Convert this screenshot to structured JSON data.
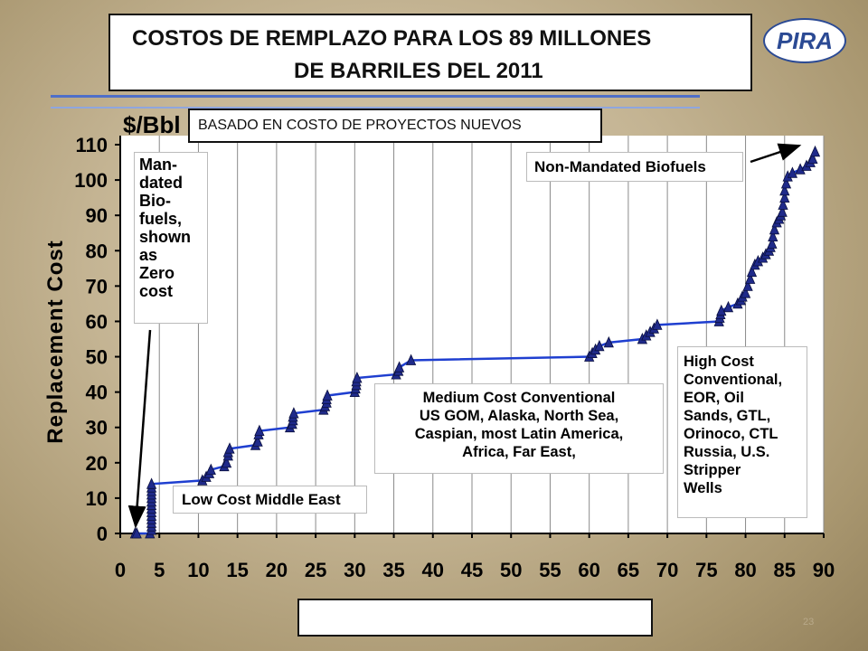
{
  "slide": {
    "title_line1": "COSTOS DE REMPLAZO PARA LOS 89 MILLONES",
    "title_line2": "DE BARRILES DEL 2011",
    "subtitle": "BASADO EN COSTO DE PROYECTOS NUEVOS",
    "logo_text": "PIRA",
    "page_number": "23"
  },
  "colors": {
    "line": "#1f3fd0",
    "marker": "#1f2a8a",
    "plot_bg": "#ffffff",
    "logo": "#2b4a94"
  },
  "chart_data": {
    "type": "line",
    "title": "",
    "xlabel": "",
    "ylabel": "Replacement Cost",
    "unit_label": "$/Bbl",
    "xlim": [
      0,
      90
    ],
    "ylim": [
      0,
      110
    ],
    "xticks": [
      0,
      5,
      10,
      15,
      20,
      25,
      30,
      35,
      40,
      45,
      50,
      55,
      60,
      65,
      70,
      75,
      80,
      85,
      90
    ],
    "yticks": [
      0,
      10,
      20,
      30,
      40,
      50,
      60,
      70,
      80,
      90,
      100,
      110
    ],
    "grid": "vertical",
    "legend": "none",
    "series": [
      {
        "x": [
          1.9,
          2.1,
          3.8,
          4.0,
          4.0,
          4.0,
          4.0,
          4.0,
          4.0,
          4.0,
          4.0,
          4.0,
          4.0,
          4.0,
          4.0,
          4.0,
          4.0,
          10.5,
          11.0,
          11.4,
          11.6,
          13.3,
          13.6,
          13.8,
          13.8,
          14.0,
          17.3,
          17.6,
          17.7,
          17.8,
          21.7,
          22.0,
          22.1,
          22.1,
          22.2,
          26.0,
          26.2,
          26.4,
          26.4,
          26.5,
          30.0,
          30.1,
          30.2,
          30.2,
          30.3,
          35.3,
          35.6,
          35.7,
          37.2,
          60.0,
          60.4,
          60.8,
          61.3,
          62.5,
          66.8,
          67.3,
          67.8,
          68.3,
          68.7,
          76.6,
          76.7,
          76.8,
          76.9,
          77.8,
          79.0,
          79.4,
          79.6,
          80.0,
          80.3,
          80.6,
          80.8,
          81.2,
          81.6,
          82.2,
          82.6,
          83.0,
          83.2,
          83.4,
          83.5,
          83.7,
          84.0,
          84.3,
          84.5,
          84.7,
          84.8,
          85.0,
          85.0,
          85.2,
          85.4,
          86.0,
          87.0,
          87.8,
          88.3,
          88.6,
          88.9
        ],
        "y": [
          0,
          0,
          0,
          1,
          2,
          3,
          4,
          5,
          6,
          7,
          8,
          9,
          10,
          11,
          12,
          13,
          14,
          15,
          16,
          17,
          18,
          19,
          20,
          22,
          23,
          24,
          25,
          26,
          28,
          29,
          30,
          31,
          32,
          33,
          34,
          35,
          36,
          37,
          38,
          39,
          40,
          41,
          42,
          43,
          44,
          45,
          46,
          47,
          49,
          50,
          51,
          52,
          53,
          54,
          55,
          56,
          57,
          58,
          59,
          60,
          61,
          62,
          63,
          64,
          65,
          66,
          67,
          68,
          70,
          72,
          74,
          76,
          77,
          78,
          79,
          80,
          81,
          82,
          84,
          86,
          88,
          89,
          90,
          91,
          93,
          95,
          97,
          99,
          101,
          102,
          103,
          104,
          105,
          106,
          108
        ]
      }
    ],
    "annotations": [
      {
        "id": "mandated",
        "lines": [
          "Man-",
          "dated",
          "Bio-",
          "fuels,",
          "shown",
          "as",
          "Zero",
          "cost"
        ]
      },
      {
        "id": "non-mandated",
        "lines": [
          "Non-Mandated Biofuels"
        ]
      },
      {
        "id": "medium",
        "lines": [
          "Medium Cost Conventional",
          "US GOM, Alaska, North Sea,",
          "Caspian, most Latin America,",
          "Africa, Far East,"
        ]
      },
      {
        "id": "low",
        "lines": [
          "Low Cost Middle East"
        ]
      },
      {
        "id": "high",
        "lines": [
          "High Cost",
          "Conventional,",
          "EOR, Oil",
          "Sands, GTL,",
          "Orinoco, CTL",
          "Russia,   U.S.",
          "Stripper",
          "Wells"
        ]
      }
    ]
  }
}
